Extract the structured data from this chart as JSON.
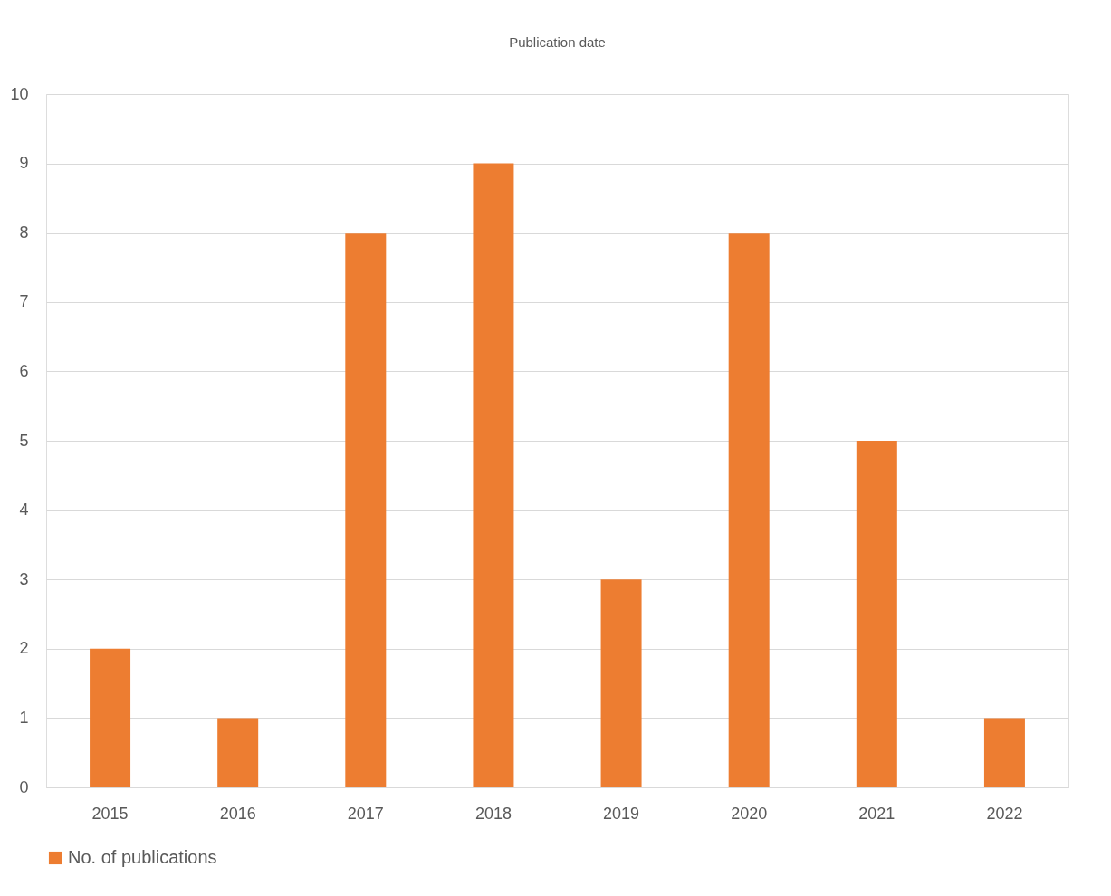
{
  "chart_data": {
    "type": "bar",
    "title": "Publication date",
    "categories": [
      "2015",
      "2016",
      "2017",
      "2018",
      "2019",
      "2020",
      "2021",
      "2022"
    ],
    "series": [
      {
        "name": "No. of publications",
        "color": "#ed7d31",
        "values": [
          2,
          1,
          8,
          9,
          3,
          8,
          5,
          1
        ]
      }
    ],
    "ylim": [
      0,
      10
    ],
    "yticks": [
      0,
      1,
      2,
      3,
      4,
      5,
      6,
      7,
      8,
      9,
      10
    ],
    "grid": "y",
    "legend": "bottom"
  }
}
